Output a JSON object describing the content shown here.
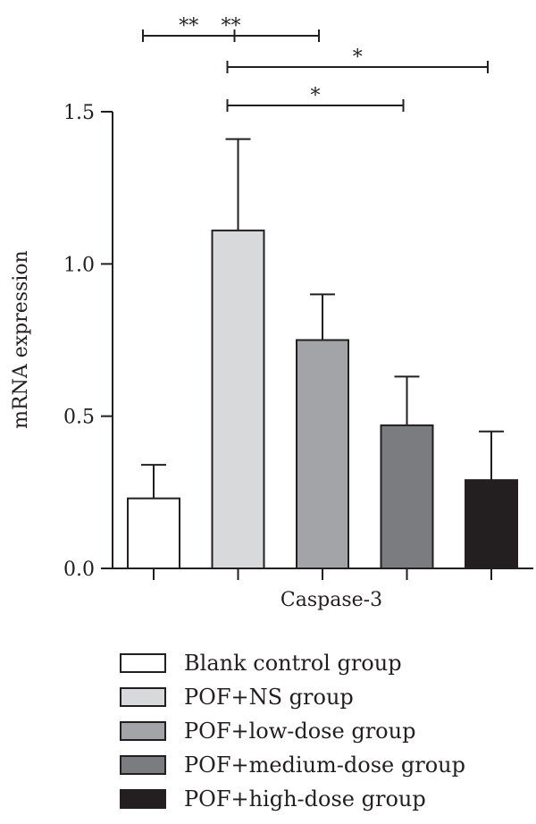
{
  "chart_data": {
    "type": "bar",
    "ylabel": "mRNA expression",
    "xlabel": "Caspase-3",
    "ylim": [
      0,
      1.5
    ],
    "yticks": [
      "0.0",
      "0.5",
      "1.0",
      "1.5"
    ],
    "series": [
      {
        "name": "Blank control group",
        "value": 0.23,
        "error": 0.11,
        "color": "#ffffff"
      },
      {
        "name": "POF+NS group",
        "value": 1.11,
        "error": 0.3,
        "color": "#d8d9db"
      },
      {
        "name": "POF+low-dose group",
        "value": 0.75,
        "error": 0.15,
        "color": "#a2a4a7"
      },
      {
        "name": "POF+medium-dose group",
        "value": 0.47,
        "error": 0.16,
        "color": "#7a7c80"
      },
      {
        "name": "POF+high-dose group",
        "value": 0.29,
        "error": 0.16,
        "color": "#231f20"
      }
    ],
    "significance": [
      {
        "from": 0,
        "to": 1,
        "label": "**"
      },
      {
        "from": 1,
        "to": 4,
        "label": "*"
      },
      {
        "from": 0,
        "to": 2,
        "label": "**"
      },
      {
        "from": 1,
        "to": 3,
        "label": "*"
      }
    ],
    "legend_position": "bottom"
  }
}
